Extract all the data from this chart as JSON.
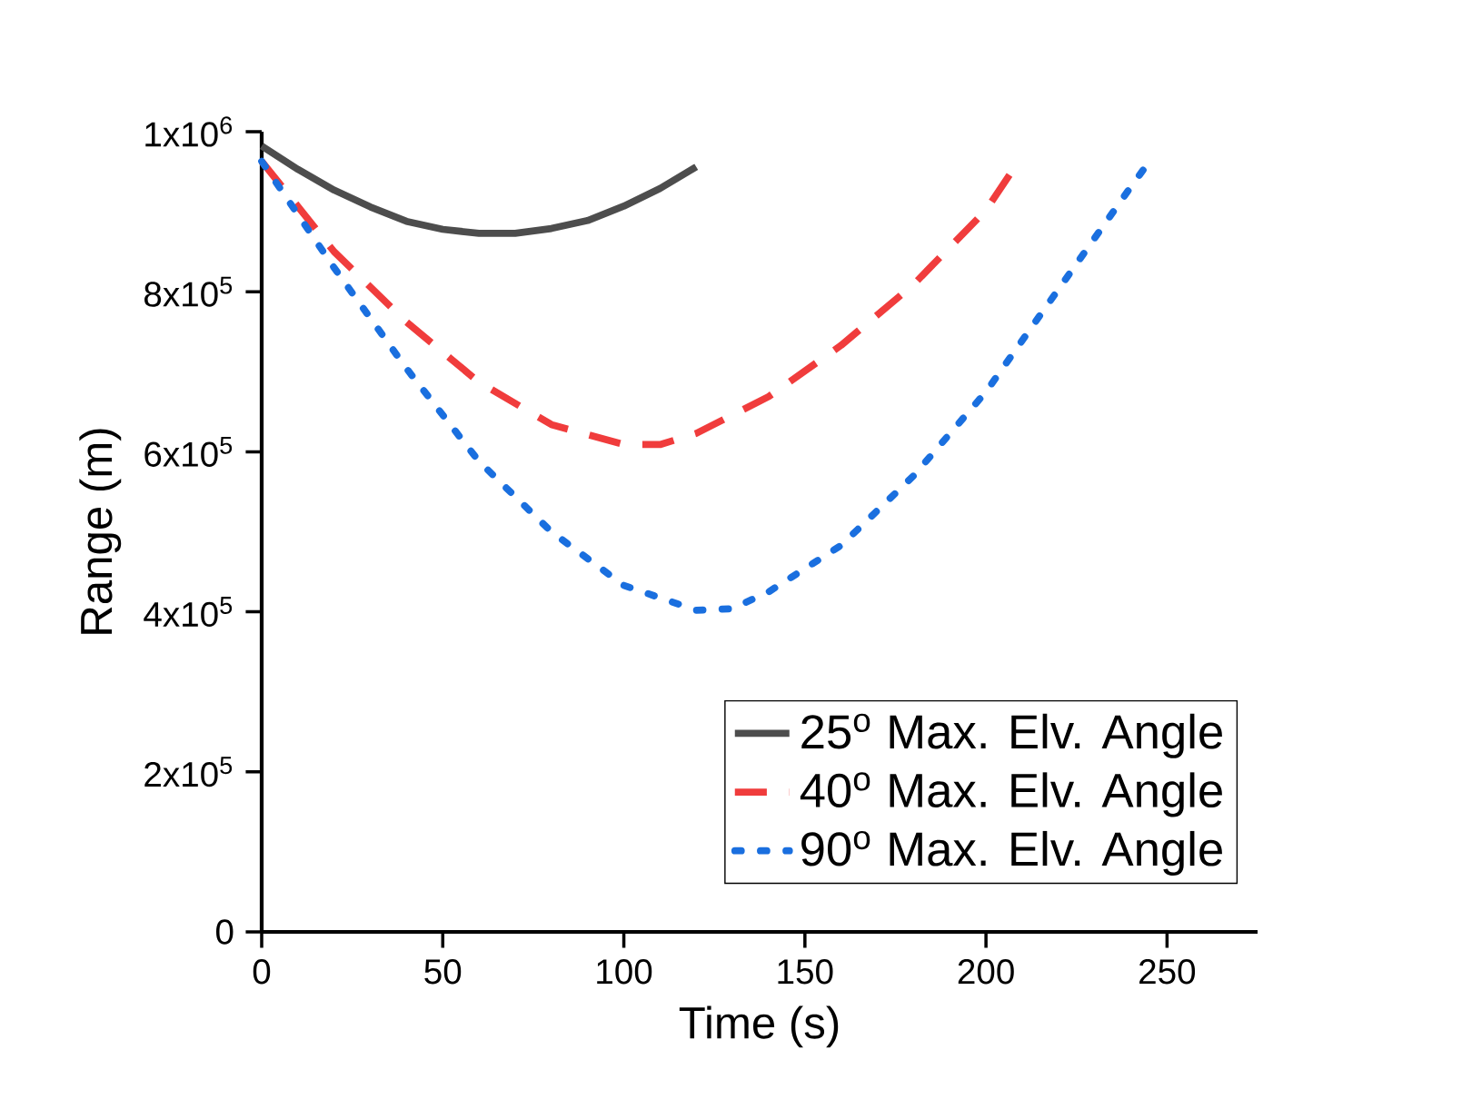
{
  "chart_data": {
    "type": "line",
    "xlabel": "Time (s)",
    "ylabel": "Range (m)",
    "xlim": [
      0,
      275
    ],
    "ylim": [
      0,
      1000000
    ],
    "xticks": [
      0,
      50,
      100,
      150,
      200,
      250
    ],
    "yticks": [
      0,
      {
        "value": 200000,
        "label": "2x10$^{5}$"
      },
      {
        "value": 400000,
        "label": "4x10$^{5}$"
      },
      {
        "value": 600000,
        "label": "6x10$^{5}$"
      },
      {
        "value": 800000,
        "label": "8x10$^{5}$"
      },
      {
        "value": 1000000,
        "label": "1x10$^{6}$"
      }
    ],
    "grid": false,
    "legend": "bottom right",
    "marker": "none",
    "series": [
      {
        "name": "25$^{o}$ Max. Elv. Angle",
        "color": "#4d4d4d",
        "line_style": "solid",
        "x": [
          0,
          10,
          20,
          30,
          40,
          50,
          60,
          70,
          80,
          90,
          100,
          110,
          120
        ],
        "values": [
          982000,
          953000,
          927000,
          906000,
          888000,
          878000,
          873000,
          873000,
          879000,
          889000,
          907000,
          929000,
          956000
        ]
      },
      {
        "name": "40$^{o}$ Max. Elv. Angle",
        "color": "#f03c3c",
        "line_style": "dashed",
        "x": [
          0,
          20,
          40,
          60,
          80,
          100,
          110,
          120,
          140,
          160,
          180,
          200,
          208
        ],
        "values": [
          963000,
          850000,
          762000,
          687000,
          634000,
          609000,
          609000,
          623000,
          669000,
          733000,
          809000,
          902000,
          956000
        ]
      },
      {
        "name": "90$^{o}$ Max. Elv. Angle",
        "color": "#1a6fdf",
        "line_style": "dotted",
        "x": [
          0,
          20,
          40,
          60,
          80,
          100,
          120,
          130,
          140,
          160,
          180,
          200,
          220,
          240,
          245
        ],
        "values": [
          963000,
          830000,
          704000,
          588000,
          500000,
          433000,
          402000,
          404000,
          425000,
          483000,
          570000,
          675000,
          803000,
          931000,
          962000
        ]
      }
    ]
  }
}
